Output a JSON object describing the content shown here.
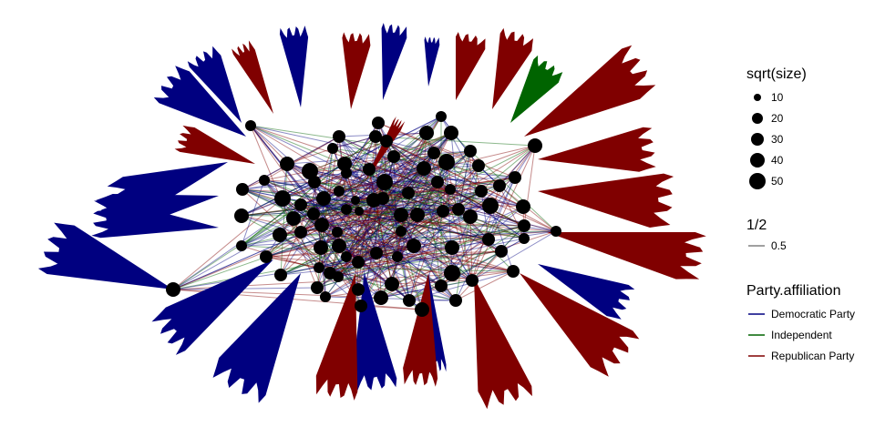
{
  "colors": {
    "background": "#ffffff",
    "node": "#000000",
    "democratic": "#000080",
    "independent": "#006400",
    "republican": "#800000",
    "weight_line": "#808080"
  },
  "legend": {
    "size": {
      "title": "sqrt(size)",
      "items": [
        "10",
        "20",
        "30",
        "40",
        "50"
      ]
    },
    "weight": {
      "title": "1/2",
      "items": [
        "0.5"
      ]
    },
    "party": {
      "title": "Party.affiliation",
      "items": [
        {
          "label": "Democratic Party",
          "color": "#000080"
        },
        {
          "label": "Independent",
          "color": "#006400"
        },
        {
          "label": "Republican Party",
          "color": "#800000"
        }
      ]
    }
  }
}
